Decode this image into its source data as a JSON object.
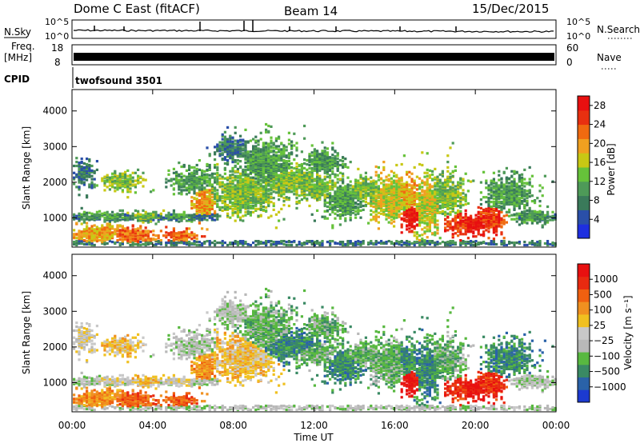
{
  "header": {
    "station": "Dome C East (fitACF)",
    "beam": "Beam 14",
    "date": "15/Dec/2015"
  },
  "top_panels": {
    "nsky_label": "N.Sky",
    "nsearch_label": "N.Search",
    "nsky_ticks": [
      "10^5",
      "10^0"
    ],
    "nsky_right_ticks": [
      "10^5",
      "10^0"
    ],
    "freq_label": "Freq.",
    "freq_unit": "[MHz]",
    "freq_ticks": [
      "18",
      "8"
    ],
    "nave_label": "Nave",
    "nave_ticks": [
      "60",
      "0"
    ],
    "cpid_label": "CPID",
    "cpid_value": "twofsound 3501"
  },
  "axes": {
    "ylabel": "Slant Range [km]",
    "xlabel": "Time UT",
    "y_ticks": [
      "1000",
      "2000",
      "3000",
      "4000"
    ],
    "x_ticks": [
      "00:00",
      "04:00",
      "08:00",
      "12:00",
      "16:00",
      "20:00",
      "00:00"
    ]
  },
  "power_colorbar": {
    "label": "Power [dB]",
    "ticks": [
      "4",
      "8",
      "12",
      "16",
      "20",
      "24",
      "28"
    ],
    "colors": [
      "#1e2fe0",
      "#2a4fa8",
      "#3a7a5a",
      "#4e9a58",
      "#66c23a",
      "#c8c814",
      "#f0a020",
      "#f06a10",
      "#e83010",
      "#e81010"
    ]
  },
  "velocity_colorbar": {
    "label": "Velocity [m s⁻¹]",
    "ticks": [
      "1000",
      "500",
      "100",
      "25",
      "−25",
      "−100",
      "−500",
      "−1000"
    ],
    "colors": [
      "#1c3ad0",
      "#2a62a8",
      "#3a8a64",
      "#58b840",
      "#b8b8b8",
      "#c8c8c8",
      "#f0c020",
      "#f09020",
      "#f06010",
      "#e82a10",
      "#e81010"
    ]
  },
  "chart_data": [
    {
      "type": "heatmap",
      "name": "power",
      "x": [
        "00:00",
        "04:00",
        "08:00",
        "12:00",
        "16:00",
        "20:00",
        "00:00"
      ],
      "ylim": [
        180,
        4600
      ],
      "zlim": [
        0,
        30
      ],
      "xlabel": "Time UT",
      "ylabel": "Slant Range [km]"
    },
    {
      "type": "heatmap",
      "name": "velocity",
      "x": [
        "00:00",
        "04:00",
        "08:00",
        "12:00",
        "16:00",
        "20:00",
        "00:00"
      ],
      "ylim": [
        180,
        4600
      ],
      "zlim": [
        -1000,
        1000
      ],
      "xlabel": "Time UT",
      "ylabel": "Slant Range [km]"
    }
  ]
}
